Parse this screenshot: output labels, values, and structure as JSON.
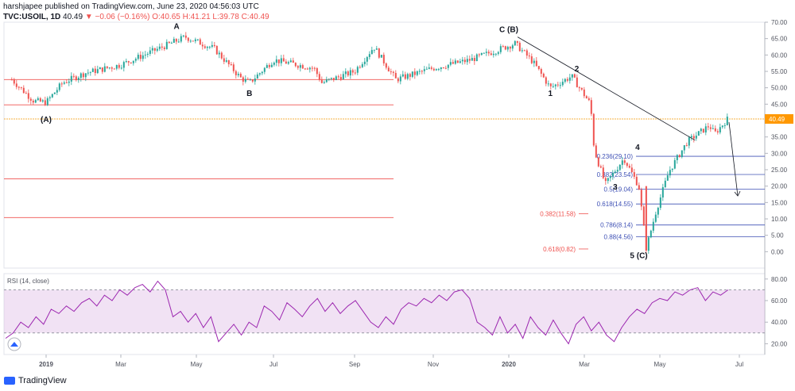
{
  "header": {
    "publisher_line": "harshjapee published on TradingView.com, June 23, 2020 04:56:03 UTC",
    "symbol": "TVC:USOIL, 1D",
    "last": "40.49",
    "change": "−0.06 (−0.16%)",
    "open": "O:40.65",
    "high": "H:41.21",
    "low": "L:39.78",
    "close": "C:40.49"
  },
  "footer": {
    "brand": "TradingView"
  },
  "colors": {
    "up": "#26a69a",
    "down": "#ef5350",
    "rsi": "#9c27b0",
    "level_red": "#ef5350",
    "fib_blue": "#3f51b5",
    "price_line": "#f5b041"
  },
  "chart_data": [
    {
      "type": "candlestick",
      "title": "",
      "xlabel": "",
      "ylabel": "",
      "ylim": [
        -5,
        70
      ],
      "yticks": [
        "70.00",
        "65.00",
        "60.00",
        "55.00",
        "50.00",
        "45.00",
        "40.00",
        "35.00",
        "30.00",
        "25.00",
        "20.00",
        "15.00",
        "10.00",
        "5.00",
        "0.00"
      ],
      "xticks": [
        "2019",
        "Mar",
        "May",
        "Jul",
        "Sep",
        "Nov",
        "2020",
        "Mar",
        "May",
        "Jul"
      ],
      "current_price_label": "40.49",
      "wave_labels": [
        "(A)",
        "A",
        "B",
        "C (B)",
        "1",
        "2",
        "3",
        "4",
        "5 (C)"
      ],
      "fib_levels": [
        {
          "label": "0.236(29.10)",
          "value": 29.1
        },
        {
          "label": "0.382(23.54)",
          "value": 23.54
        },
        {
          "label": "0.5(19.04)",
          "value": 19.04
        },
        {
          "label": "0.618(14.55)",
          "value": 14.55
        },
        {
          "label": "0.786(8.14)",
          "value": 8.14
        },
        {
          "label": "0.88(4.56)",
          "value": 4.56
        }
      ],
      "ext_levels": [
        {
          "label": "0.382(11.58)",
          "value": 11.58
        },
        {
          "label": "0.618(0.82)",
          "value": 0.82
        }
      ],
      "horizontal_levels": [
        52.5,
        44.8,
        22.2,
        10.4
      ],
      "close_path": [
        {
          "x": "2018-12-10",
          "y": 52.5
        },
        {
          "x": "2018-12-24",
          "y": 46.0
        },
        {
          "x": "2019-01-01",
          "y": 45.5
        },
        {
          "x": "2019-01-14",
          "y": 51.5
        },
        {
          "x": "2019-02-01",
          "y": 54.5
        },
        {
          "x": "2019-03-01",
          "y": 57.0
        },
        {
          "x": "2019-04-01",
          "y": 62.0
        },
        {
          "x": "2019-04-22",
          "y": 65.5
        },
        {
          "x": "2019-05-15",
          "y": 62.0
        },
        {
          "x": "2019-06-05",
          "y": 53.0
        },
        {
          "x": "2019-06-12",
          "y": 51.5
        },
        {
          "x": "2019-07-01",
          "y": 58.5
        },
        {
          "x": "2019-08-01",
          "y": 56.0
        },
        {
          "x": "2019-08-07",
          "y": 51.5
        },
        {
          "x": "2019-09-01",
          "y": 55.0
        },
        {
          "x": "2019-09-16",
          "y": 62.5
        },
        {
          "x": "2019-10-03",
          "y": 52.5
        },
        {
          "x": "2019-11-01",
          "y": 56.0
        },
        {
          "x": "2019-12-01",
          "y": 58.5
        },
        {
          "x": "2020-01-06",
          "y": 63.5
        },
        {
          "x": "2020-01-20",
          "y": 58.0
        },
        {
          "x": "2020-02-03",
          "y": 50.0
        },
        {
          "x": "2020-02-20",
          "y": 53.5
        },
        {
          "x": "2020-03-06",
          "y": 45.0
        },
        {
          "x": "2020-03-09",
          "y": 31.0
        },
        {
          "x": "2020-03-18",
          "y": 20.5
        },
        {
          "x": "2020-04-02",
          "y": 28.5
        },
        {
          "x": "2020-04-14",
          "y": 20.0
        },
        {
          "x": "2020-04-20",
          "y": 1.0
        },
        {
          "x": "2020-04-28",
          "y": 12.5
        },
        {
          "x": "2020-05-08",
          "y": 24.5
        },
        {
          "x": "2020-05-22",
          "y": 33.5
        },
        {
          "x": "2020-06-08",
          "y": 38.5
        },
        {
          "x": "2020-06-12",
          "y": 36.0
        },
        {
          "x": "2020-06-22",
          "y": 40.49
        }
      ]
    },
    {
      "type": "line",
      "title": "RSI (14, close)",
      "ylim": [
        10,
        85
      ],
      "yticks": [
        "80.00",
        "60.00",
        "40.00",
        "20.00"
      ],
      "band": [
        30,
        70
      ],
      "series": [
        {
          "values": [
            25,
            30,
            40,
            35,
            45,
            38,
            52,
            48,
            55,
            50,
            58,
            62,
            55,
            65,
            60,
            70,
            65,
            72,
            75,
            68,
            78,
            70,
            45,
            50,
            40,
            48,
            35,
            45,
            22,
            30,
            38,
            28,
            40,
            35,
            55,
            50,
            42,
            58,
            52,
            45,
            55,
            62,
            50,
            58,
            48,
            55,
            60,
            50,
            40,
            35,
            45,
            38,
            52,
            58,
            55,
            62,
            58,
            65,
            60,
            68,
            70,
            62,
            40,
            35,
            28,
            45,
            30,
            38,
            25,
            45,
            35,
            28,
            42,
            30,
            20,
            38,
            45,
            32,
            40,
            28,
            22,
            35,
            45,
            52,
            48,
            58,
            62,
            60,
            68,
            65,
            70,
            72,
            60,
            68,
            65,
            70
          ]
        }
      ]
    }
  ]
}
